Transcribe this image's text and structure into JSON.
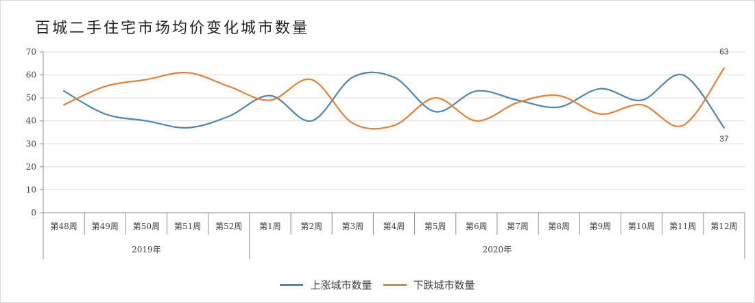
{
  "colors": {
    "up": "#4a86b5",
    "down": "#ed7d31",
    "grid": "#d9d9d9",
    "axis": "#8c8c8c"
  },
  "chart_data": {
    "type": "line",
    "title": "百城二手住宅市场均价变化城市数量",
    "categories": [
      "第48周",
      "第49周",
      "第50周",
      "第51周",
      "第52周",
      "第1周",
      "第2周",
      "第3周",
      "第4周",
      "第5周",
      "第6周",
      "第7周",
      "第8周",
      "第9周",
      "第10周",
      "第11周",
      "第12周"
    ],
    "category_groups": [
      {
        "label": "2019年",
        "count": 5
      },
      {
        "label": "2020年",
        "count": 12
      }
    ],
    "y_ticks": [
      0,
      10,
      20,
      30,
      40,
      50,
      60,
      70
    ],
    "ylim": [
      0,
      70
    ],
    "grid": true,
    "smooth": true,
    "legend_position": "bottom",
    "series": [
      {
        "name": "上涨城市数量",
        "values": [
          53,
          43,
          40,
          37,
          42,
          51,
          40,
          59,
          59,
          44,
          53,
          49,
          46,
          54,
          49,
          60,
          37
        ]
      },
      {
        "name": "下跌城市数量",
        "values": [
          47,
          55,
          58,
          61,
          55,
          49,
          58,
          39,
          38,
          50,
          40,
          48,
          51,
          43,
          47,
          38,
          63
        ]
      }
    ],
    "data_labels": [
      {
        "series": 1,
        "index": 16,
        "text": "63"
      },
      {
        "series": 0,
        "index": 16,
        "text": "37"
      }
    ]
  }
}
